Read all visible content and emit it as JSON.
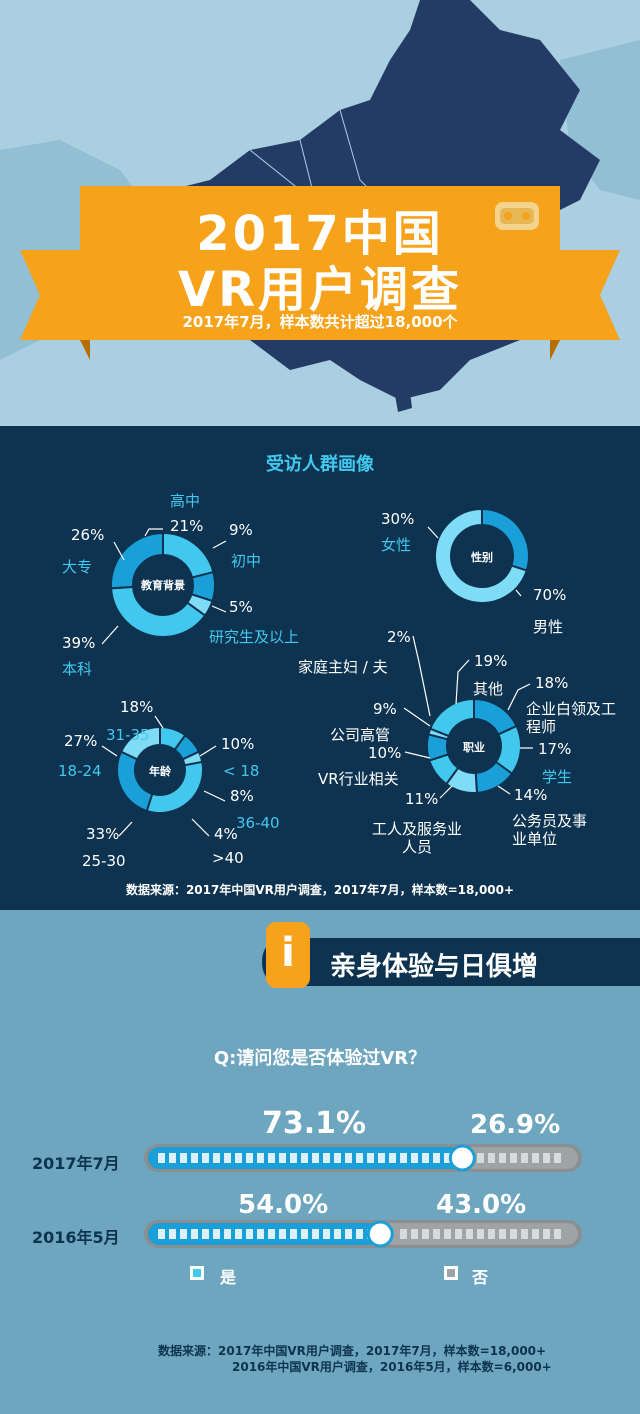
{
  "header": {
    "title_line1": "2017中国",
    "title_line2": "VR用户调查",
    "subtitle": "2017年7月，样本数共计超过18,000个"
  },
  "profile": {
    "heading": "受访人群画像",
    "source": "数据来源：2017年中国VR用户调查，2017年7月，样本数=18,000+"
  },
  "section2": {
    "badge": "i",
    "title": "亲身体验与日俱增",
    "question": "Q:请问您是否体验过VR？",
    "legend_yes": "是",
    "legend_no": "否",
    "source_line1": "数据来源：2017年中国VR用户调查，2017年7月，样本数=18,000+",
    "source_line2": "2016年中国VR用户调查，2016年5月，样本数=6,000+"
  },
  "colors": {
    "navy": "#0d3350",
    "cyan": "#42c8ee",
    "blue": "#1a9fd8",
    "light_cyan": "#7fdcf6",
    "orange": "#f7a21b",
    "gray": "#9ea3a6",
    "bg": "#6ea6bf"
  },
  "chart_data": [
    {
      "type": "pie",
      "center_label": "教育背景",
      "slices": [
        {
          "label": "高中",
          "value": 21
        },
        {
          "label": "初中",
          "value": 9
        },
        {
          "label": "研究生及以上",
          "value": 5
        },
        {
          "label": "本科",
          "value": 39
        },
        {
          "label": "大专",
          "value": 26
        }
      ]
    },
    {
      "type": "pie",
      "center_label": "性别",
      "slices": [
        {
          "label": "女性",
          "value": 30
        },
        {
          "label": "男性",
          "value": 70
        }
      ]
    },
    {
      "type": "pie",
      "center_label": "年龄",
      "slices": [
        {
          "label": "< 18",
          "value": 10
        },
        {
          "label": "36-40",
          "value": 8
        },
        {
          "label": ">40",
          "value": 4
        },
        {
          "label": "25-30",
          "value": 33
        },
        {
          "label": "18-24",
          "value": 27
        },
        {
          "label": "31-35",
          "value": 18
        }
      ]
    },
    {
      "type": "pie",
      "center_label": "职业",
      "slices": [
        {
          "label": "企业白领及工程师",
          "value": 18
        },
        {
          "label": "学生",
          "value": 17
        },
        {
          "label": "公务员及事业单位",
          "value": 14
        },
        {
          "label": "工人及服务业人员",
          "value": 11
        },
        {
          "label": "VR行业相关",
          "value": 10
        },
        {
          "label": "公司高管",
          "value": 9
        },
        {
          "label": "家庭主妇 / 夫",
          "value": 2
        },
        {
          "label": "其他",
          "value": 19
        }
      ]
    },
    {
      "type": "bar",
      "categories": [
        "2017年7月",
        "2016年5月"
      ],
      "series": [
        {
          "name": "是",
          "values": [
            73.1,
            54.0
          ]
        },
        {
          "name": "否",
          "values": [
            26.9,
            43.0
          ]
        }
      ],
      "value_labels": {
        "yes": [
          "73.1%",
          "54.0%"
        ],
        "no": [
          "26.9%",
          "43.0%"
        ]
      },
      "xlim": [
        0,
        100
      ]
    }
  ]
}
